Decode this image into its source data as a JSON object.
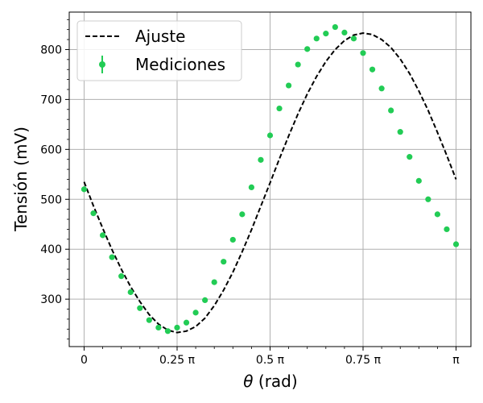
{
  "chart_data": {
    "type": "scatter",
    "xlabel_symbol": "θ",
    "xlabel_unit": " (rad)",
    "ylabel": "Tensión (mV)",
    "xlim": [
      -0.04,
      1.04
    ],
    "ylim": [
      205,
      875
    ],
    "grid": true,
    "legend_position": "top-left",
    "x_ticks": [
      {
        "value": 0,
        "label": "0"
      },
      {
        "value": 0.25,
        "label": "0.25 π"
      },
      {
        "value": 0.5,
        "label": "0.5 π"
      },
      {
        "value": 0.75,
        "label": "0.75 π"
      },
      {
        "value": 1,
        "label": "π"
      }
    ],
    "y_ticks": [
      300,
      400,
      500,
      600,
      700,
      800
    ],
    "series": [
      {
        "name": "Ajuste",
        "kind": "line",
        "style": "dashed",
        "color": "#000000",
        "x": [
          0,
          0.025,
          0.05,
          0.075,
          0.1,
          0.125,
          0.15,
          0.175,
          0.2,
          0.225,
          0.25,
          0.275,
          0.3,
          0.325,
          0.35,
          0.375,
          0.4,
          0.425,
          0.45,
          0.475,
          0.5,
          0.525,
          0.55,
          0.575,
          0.6,
          0.625,
          0.65,
          0.675,
          0.7,
          0.725,
          0.75,
          0.775,
          0.8,
          0.825,
          0.85,
          0.875,
          0.9,
          0.925,
          0.95,
          0.975,
          1
        ],
        "y": [
          535,
          487,
          442,
          399,
          360,
          325,
          295,
          269,
          250,
          238,
          233,
          236,
          245,
          262,
          287,
          318,
          354,
          395,
          439,
          486,
          533,
          581,
          627,
          671,
          711,
          746,
          776,
          800,
          818,
          829,
          833,
          830,
          820,
          804,
          781,
          752,
          717,
          678,
          634,
          588,
          540
        ]
      },
      {
        "name": "Mediciones",
        "kind": "scatter",
        "color": "#22cc55",
        "x": [
          0,
          0.025,
          0.05,
          0.075,
          0.1,
          0.125,
          0.15,
          0.175,
          0.2,
          0.225,
          0.25,
          0.275,
          0.3,
          0.325,
          0.35,
          0.375,
          0.4,
          0.425,
          0.45,
          0.475,
          0.5,
          0.525,
          0.55,
          0.575,
          0.6,
          0.625,
          0.65,
          0.675,
          0.7,
          0.725,
          0.75,
          0.775,
          0.8,
          0.825,
          0.85,
          0.875,
          0.9,
          0.925,
          0.95,
          0.975,
          1
        ],
        "y": [
          520,
          472,
          428,
          384,
          346,
          314,
          282,
          258,
          243,
          236,
          243,
          253,
          273,
          298,
          334,
          375,
          419,
          470,
          524,
          579,
          628,
          682,
          728,
          770,
          801,
          822,
          832,
          845,
          834,
          822,
          793,
          760,
          722,
          678,
          635,
          585,
          537,
          500,
          470,
          440,
          410
        ]
      }
    ]
  }
}
